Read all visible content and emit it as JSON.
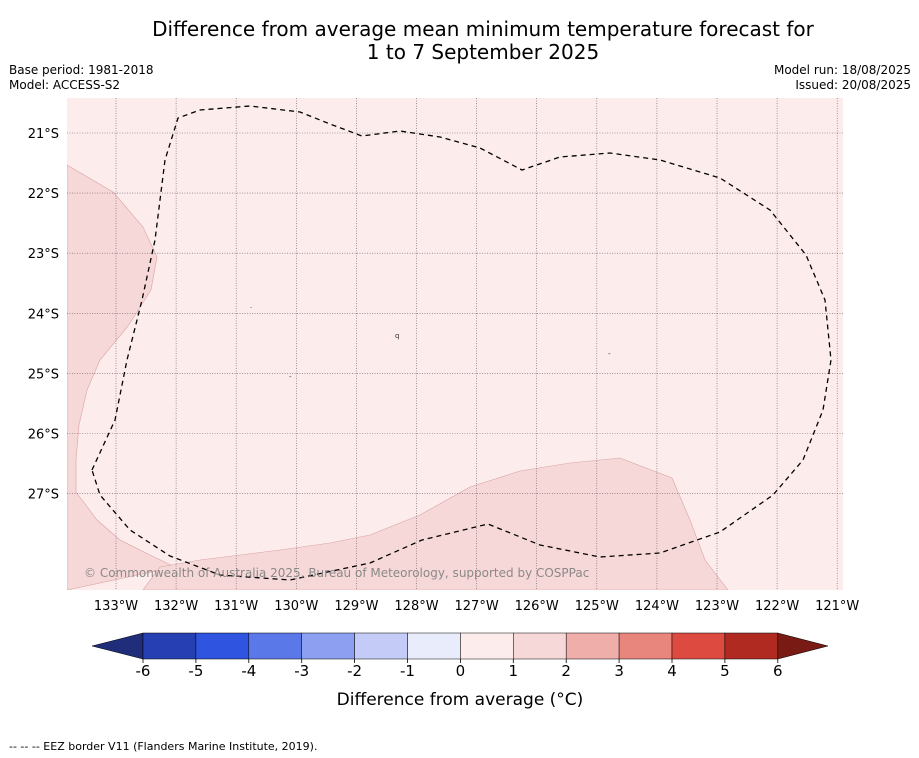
{
  "title": {
    "line1": "Difference from average mean minimum temperature forecast for",
    "line2": "1 to 7 September 2025"
  },
  "meta": {
    "base_period": "Base period: 1981-2018",
    "model": "Model: ACCESS-S2",
    "model_run": "Model run: 18/08/2025",
    "issued": "Issued: 20/08/2025"
  },
  "map": {
    "latitude_labels": [
      "21°S",
      "22°S",
      "23°S",
      "24°S",
      "25°S",
      "26°S",
      "27°S"
    ],
    "longitude_labels": [
      "133°W",
      "132°W",
      "131°W",
      "130°W",
      "129°W",
      "128°W",
      "127°W",
      "126°W",
      "125°W",
      "124°W",
      "123°W",
      "122°W",
      "121°W"
    ],
    "background_category": "0 to 1",
    "warmer_category": "1 to 2",
    "boundary": "EEZ border",
    "copyright": "© Commonwealth of Australia 2025, Bureau of Meteorology, supported by COSPPac"
  },
  "colorbar": {
    "ticks": [
      "-6",
      "-5",
      "-4",
      "-3",
      "-2",
      "-1",
      "0",
      "1",
      "2",
      "3",
      "4",
      "5",
      "6"
    ],
    "colors": [
      "#1f2d7a",
      "#2640b3",
      "#2f55e0",
      "#5b78e8",
      "#8c9ff0",
      "#c3cbf6",
      "#e9ecfb",
      "#fcecec",
      "#f7d8d8",
      "#f0aeaa",
      "#e8857d",
      "#dc4a40",
      "#b02a22",
      "#7a1a14"
    ],
    "label": "Difference from average (°C)"
  },
  "footnote": "-- -- -- EEZ border V11 (Flanders Marine Institute, 2019)."
}
